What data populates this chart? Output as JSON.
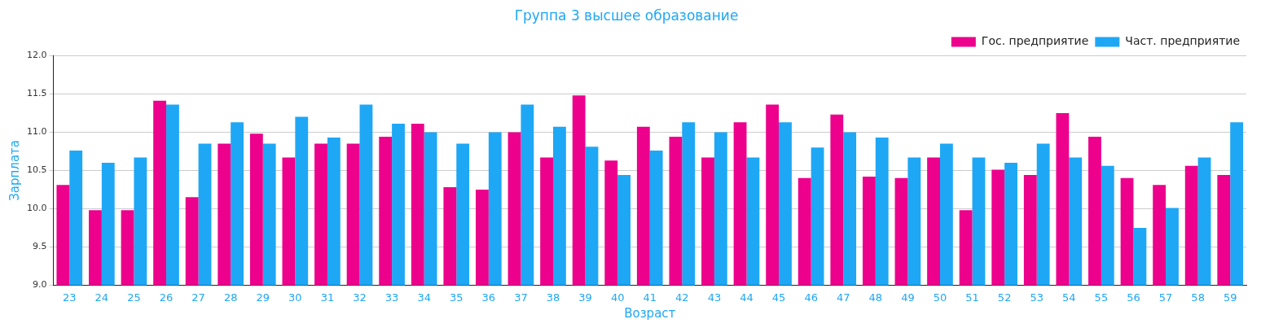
{
  "chart_data": {
    "type": "bar",
    "title": "Группа 3 высшее образование",
    "xlabel": "Возраст",
    "ylabel": "Зарплата",
    "categories": [
      "23",
      "24",
      "25",
      "26",
      "27",
      "28",
      "29",
      "30",
      "31",
      "32",
      "33",
      "34",
      "35",
      "36",
      "37",
      "38",
      "39",
      "40",
      "41",
      "42",
      "43",
      "44",
      "45",
      "46",
      "47",
      "48",
      "49",
      "50",
      "51",
      "52",
      "53",
      "54",
      "55",
      "56",
      "57",
      "58",
      "59"
    ],
    "series": [
      {
        "name": "Гос. предприятие",
        "color": "#ec008c",
        "values": [
          10.31,
          9.98,
          9.98,
          11.41,
          10.15,
          10.85,
          10.98,
          10.67,
          10.85,
          10.85,
          10.94,
          11.11,
          10.28,
          10.25,
          11.0,
          10.67,
          11.48,
          10.63,
          11.07,
          10.94,
          10.67,
          11.13,
          11.36,
          10.4,
          11.23,
          10.42,
          10.4,
          10.67,
          9.98,
          10.51,
          10.44,
          11.25,
          10.94,
          10.4,
          10.31,
          10.56,
          10.44
        ]
      },
      {
        "name": "Част. предприятие",
        "color": "#1ea7f5",
        "values": [
          10.76,
          10.6,
          10.67,
          11.36,
          10.85,
          11.13,
          10.85,
          11.2,
          10.93,
          11.36,
          11.11,
          11.0,
          10.85,
          11.0,
          11.36,
          11.07,
          10.81,
          10.44,
          10.76,
          11.13,
          11.0,
          10.67,
          11.13,
          10.8,
          11.0,
          10.93,
          10.67,
          10.85,
          10.67,
          10.6,
          10.85,
          10.67,
          10.56,
          9.75,
          10.01,
          10.67,
          11.13
        ]
      }
    ],
    "ylim": [
      9,
      12
    ],
    "yticks": [
      {
        "value": 9,
        "label": "9.0"
      },
      {
        "value": 9.5,
        "label": "9.5"
      },
      {
        "value": 10,
        "label": "10.0"
      },
      {
        "value": 10.5,
        "label": "10.5"
      },
      {
        "value": 11,
        "label": "11.0"
      },
      {
        "value": 11.5,
        "label": "11.5"
      },
      {
        "value": 12,
        "label": "12.0"
      }
    ],
    "grid": "y",
    "legend": "top right"
  }
}
